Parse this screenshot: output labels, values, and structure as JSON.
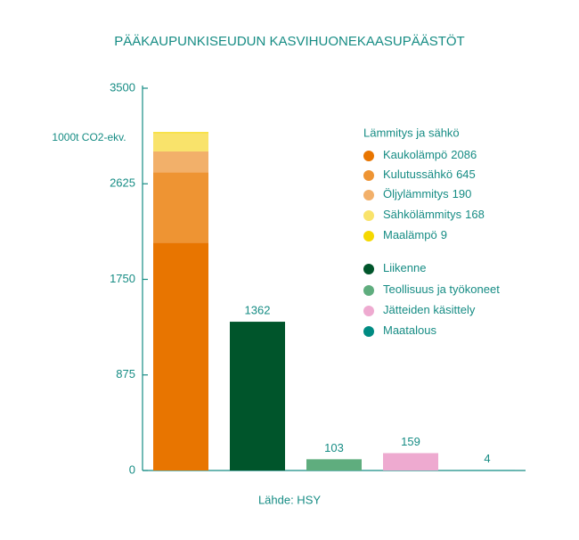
{
  "chart_data": {
    "type": "bar",
    "title": "PÄÄKAUPUNKISEUDUN KASVIHUONEKAASUPÄÄSTÖT",
    "y_label": "1000t CO2-ekv.",
    "source": "Lähde: HSY",
    "legend_title": "Lämmitys ja sähkö",
    "categories": [
      null,
      null,
      null,
      null,
      null
    ],
    "ylim": [
      0,
      3500
    ],
    "yticks": [
      0,
      875,
      1750,
      2625,
      3500
    ],
    "stacked": true,
    "series": [
      {
        "name": "Kaukolämpö",
        "color": "#e87500",
        "values": [
          2086,
          null,
          null,
          null,
          null
        ],
        "legend_value": true
      },
      {
        "name": "Kulutussähkö",
        "color": "#ee9433",
        "values": [
          645,
          null,
          null,
          null,
          null
        ],
        "legend_value": true
      },
      {
        "name": "Öljylämmitys",
        "color": "#f2b06a",
        "values": [
          190,
          null,
          null,
          null,
          null
        ],
        "legend_value": true
      },
      {
        "name": "Sähkölämmitys",
        "color": "#f9e36b",
        "values": [
          168,
          null,
          null,
          null,
          null
        ],
        "legend_value": true
      },
      {
        "name": "Maalämpö",
        "color": "#f5d800",
        "values": [
          9,
          null,
          null,
          null,
          null
        ],
        "legend_value": true
      },
      {
        "name": "Liikenne",
        "color": "#00552b",
        "values": [
          null,
          1362,
          null,
          null,
          null
        ],
        "data_label": true
      },
      {
        "name": "Teollisuus ja työkoneet",
        "color": "#5fad7e",
        "values": [
          null,
          null,
          103,
          null,
          null
        ],
        "data_label": true
      },
      {
        "name": "Jätteiden käsittely",
        "color": "#eeaad0",
        "values": [
          null,
          null,
          null,
          159,
          null
        ],
        "data_label": true
      },
      {
        "name": "Maatalous",
        "color": "#008b82",
        "values": [
          null,
          null,
          null,
          null,
          4
        ],
        "data_label": true
      }
    ]
  }
}
